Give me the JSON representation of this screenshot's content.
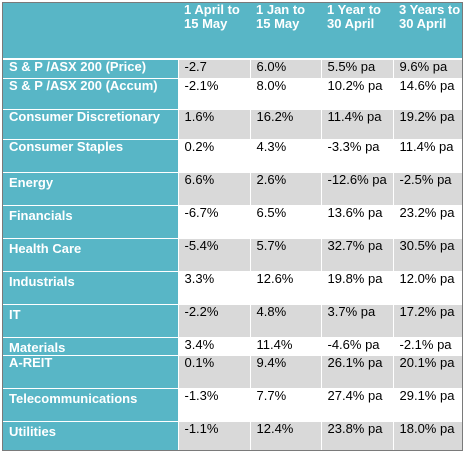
{
  "table": {
    "headers": [
      "",
      "1 April to 15 May",
      "1 Jan to 15 May",
      "1 Year to 30 April",
      "3 Years to 30 April"
    ],
    "rows": [
      {
        "label": "S & P /ASX 200 (Price)",
        "values": [
          "-2.7",
          "6.0%",
          "5.5% pa",
          "9.6% pa"
        ]
      },
      {
        "label": "S & P /ASX 200 (Accum)",
        "values": [
          "-2.1%",
          "8.0%",
          "10.2% pa",
          "14.6% pa"
        ]
      },
      {
        "label": "Consumer Discretionary",
        "values": [
          "1.6%",
          "16.2%",
          "11.4% pa",
          "19.2% pa"
        ]
      },
      {
        "label": "Consumer Staples",
        "values": [
          "0.2%",
          "4.3%",
          "-3.3% pa",
          "11.4% pa"
        ]
      },
      {
        "label": "Energy",
        "values": [
          "6.6%",
          "2.6%",
          "-12.6% pa",
          "-2.5% pa"
        ]
      },
      {
        "label": "Financials",
        "values": [
          "-6.7%",
          "6.5%",
          "13.6% pa",
          "23.2% pa"
        ]
      },
      {
        "label": "Health Care",
        "values": [
          "-5.4%",
          "5.7%",
          "32.7% pa",
          "30.5% pa"
        ]
      },
      {
        "label": "Industrials",
        "values": [
          "3.3%",
          "12.6%",
          "19.8% pa",
          "12.0% pa"
        ]
      },
      {
        "label": "IT",
        "values": [
          "-2.2%",
          "4.8%",
          "3.7% pa",
          "17.2% pa"
        ]
      },
      {
        "label": "Materials",
        "values": [
          "3.4%",
          "11.4%",
          "-4.6% pa",
          "-2.1% pa"
        ]
      },
      {
        "label": "A-REIT",
        "values": [
          "0.1%",
          "9.4%",
          "26.1% pa",
          "20.1% pa"
        ]
      },
      {
        "label": "Telecommunications",
        "values": [
          "-1.3%",
          "7.7%",
          "27.4% pa",
          "29.1% pa"
        ]
      },
      {
        "label": "Utilities",
        "values": [
          "-1.1%",
          "12.4%",
          "23.8% pa",
          "18.0% pa"
        ]
      }
    ]
  },
  "colors": {
    "header_bg": "#58b6c6",
    "row_shade": "#d9d9d9",
    "text_light": "#ffffff"
  }
}
